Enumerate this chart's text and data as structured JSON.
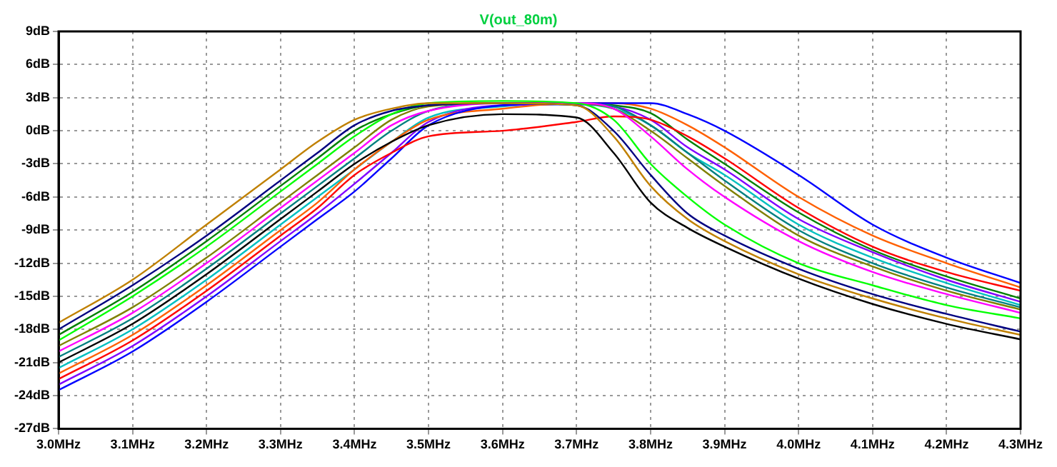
{
  "chart_data": {
    "type": "line",
    "title": "V(out_80m)",
    "legend": false,
    "grid": true,
    "marker": "none",
    "x": [
      3.0,
      3.1,
      3.2,
      3.3,
      3.35,
      3.4,
      3.45,
      3.5,
      3.6,
      3.7,
      3.75,
      3.8,
      3.85,
      3.9,
      4.0,
      4.1,
      4.2,
      4.3
    ],
    "xlim": [
      3.0,
      4.3
    ],
    "xticks": [
      {
        "value": 3.0,
        "label": "3.0MHz"
      },
      {
        "value": 3.1,
        "label": "3.1MHz"
      },
      {
        "value": 3.2,
        "label": "3.2MHz"
      },
      {
        "value": 3.3,
        "label": "3.3MHz"
      },
      {
        "value": 3.4,
        "label": "3.4MHz"
      },
      {
        "value": 3.5,
        "label": "3.5MHz"
      },
      {
        "value": 3.6,
        "label": "3.6MHz"
      },
      {
        "value": 3.7,
        "label": "3.7MHz"
      },
      {
        "value": 3.8,
        "label": "3.8MHz"
      },
      {
        "value": 3.9,
        "label": "3.9MHz"
      },
      {
        "value": 4.0,
        "label": "4.0MHz"
      },
      {
        "value": 4.1,
        "label": "4.1MHz"
      },
      {
        "value": 4.2,
        "label": "4.2MHz"
      },
      {
        "value": 4.3,
        "label": "4.3MHz"
      }
    ],
    "ylim": [
      -27,
      9
    ],
    "yticks": [
      {
        "value": -27,
        "label": "-27dB"
      },
      {
        "value": -24,
        "label": "-24dB"
      },
      {
        "value": -21,
        "label": "-21dB"
      },
      {
        "value": -18,
        "label": "-18dB"
      },
      {
        "value": -15,
        "label": "-15dB"
      },
      {
        "value": -12,
        "label": "-12dB"
      },
      {
        "value": -9,
        "label": "-9dB"
      },
      {
        "value": -6,
        "label": "-6dB"
      },
      {
        "value": -3,
        "label": "-3dB"
      },
      {
        "value": 0,
        "label": "0dB"
      },
      {
        "value": 3,
        "label": "3dB"
      },
      {
        "value": 6,
        "label": "6dB"
      },
      {
        "value": 9,
        "label": "9dB"
      }
    ],
    "series": [
      {
        "color": "#c08000",
        "values": [
          -17.4,
          -13.5,
          -8.5,
          -3.5,
          -1,
          1,
          2,
          2.5,
          2.5,
          2.3,
          -0.5,
          -5,
          -8,
          -10,
          -13,
          -15.2,
          -17,
          -18.5
        ]
      },
      {
        "color": "#000080",
        "values": [
          -18,
          -14,
          -9.5,
          -4.5,
          -2,
          0.5,
          1.8,
          2.3,
          2.5,
          2.3,
          0,
          -4,
          -7.5,
          -9.5,
          -12.5,
          -14.8,
          -16.6,
          -18.2
        ]
      },
      {
        "color": "#00ff00",
        "values": [
          -19,
          -15,
          -10.5,
          -5.5,
          -3,
          -0.5,
          1.5,
          2.5,
          2.7,
          2.5,
          1,
          -3,
          -6,
          -8.5,
          -12,
          -14,
          -15.8,
          -17
        ]
      },
      {
        "color": "#ff00ff",
        "values": [
          -20,
          -16.5,
          -12,
          -7,
          -4.5,
          -2,
          0.5,
          1.8,
          2.5,
          2.5,
          2,
          -0.5,
          -3.5,
          -6,
          -10,
          -12.8,
          -14.8,
          -16.5
        ]
      },
      {
        "color": "#000000",
        "values": [
          -21,
          -17.5,
          -13,
          -8,
          -5.5,
          -3,
          -1,
          0.5,
          1.5,
          1.2,
          -2,
          -6.5,
          -8.8,
          -10.5,
          -13.4,
          -15.7,
          -17.5,
          -18.9
        ]
      },
      {
        "color": "#ff0000",
        "values": [
          -22.5,
          -19,
          -14.5,
          -9.5,
          -7,
          -4,
          -2,
          -0.5,
          0,
          0.8,
          1.3,
          1,
          -0.5,
          -2.5,
          -7,
          -10.5,
          -12.8,
          -14.5
        ]
      },
      {
        "color": "#0000ff",
        "values": [
          -23.5,
          -20,
          -15.5,
          -10.5,
          -8,
          -5.5,
          -2.5,
          0.5,
          2.3,
          2.5,
          2.5,
          2.5,
          1.5,
          0,
          -4,
          -8.5,
          -11.5,
          -13.8
        ]
      },
      {
        "color": "#ff6000",
        "values": [
          -22,
          -18.5,
          -14,
          -9,
          -6.5,
          -3.5,
          -1,
          1,
          2,
          2.5,
          2.5,
          2,
          0.5,
          -1.5,
          -6,
          -9.5,
          -12,
          -14.2
        ]
      },
      {
        "color": "#008080",
        "values": [
          -20.5,
          -17,
          -12.5,
          -7.5,
          -5,
          -2.5,
          0,
          1.8,
          2.5,
          2.5,
          2.2,
          0.5,
          -2,
          -4.5,
          -9,
          -12,
          -14.2,
          -16
        ]
      },
      {
        "color": "#808000",
        "values": [
          -19.5,
          -16,
          -11.5,
          -6.5,
          -4,
          -1.5,
          1,
          2.2,
          2.5,
          2.5,
          2,
          0,
          -2.5,
          -5,
          -9.5,
          -12.3,
          -14.5,
          -16.2
        ]
      },
      {
        "color": "#8000ff",
        "values": [
          -23,
          -19.5,
          -15,
          -10,
          -7.5,
          -4.8,
          -2,
          0.8,
          2.3,
          2.4,
          2.2,
          1,
          -1.5,
          -3.5,
          -8,
          -11,
          -13.5,
          -15.5
        ]
      },
      {
        "color": "#00c0c0",
        "values": [
          -21.5,
          -18,
          -13.5,
          -8.5,
          -6,
          -3.5,
          -1,
          1.2,
          2.2,
          2.4,
          2,
          0.5,
          -2,
          -4,
          -8.5,
          -11.5,
          -13.8,
          -15.8
        ]
      },
      {
        "color": "#008000",
        "values": [
          -18.5,
          -14.6,
          -10,
          -5,
          -2.5,
          0,
          1.5,
          2.3,
          2.5,
          2.5,
          2.3,
          1.6,
          -0.8,
          -3,
          -7.4,
          -10.8,
          -13.2,
          -15.2
        ]
      }
    ]
  }
}
